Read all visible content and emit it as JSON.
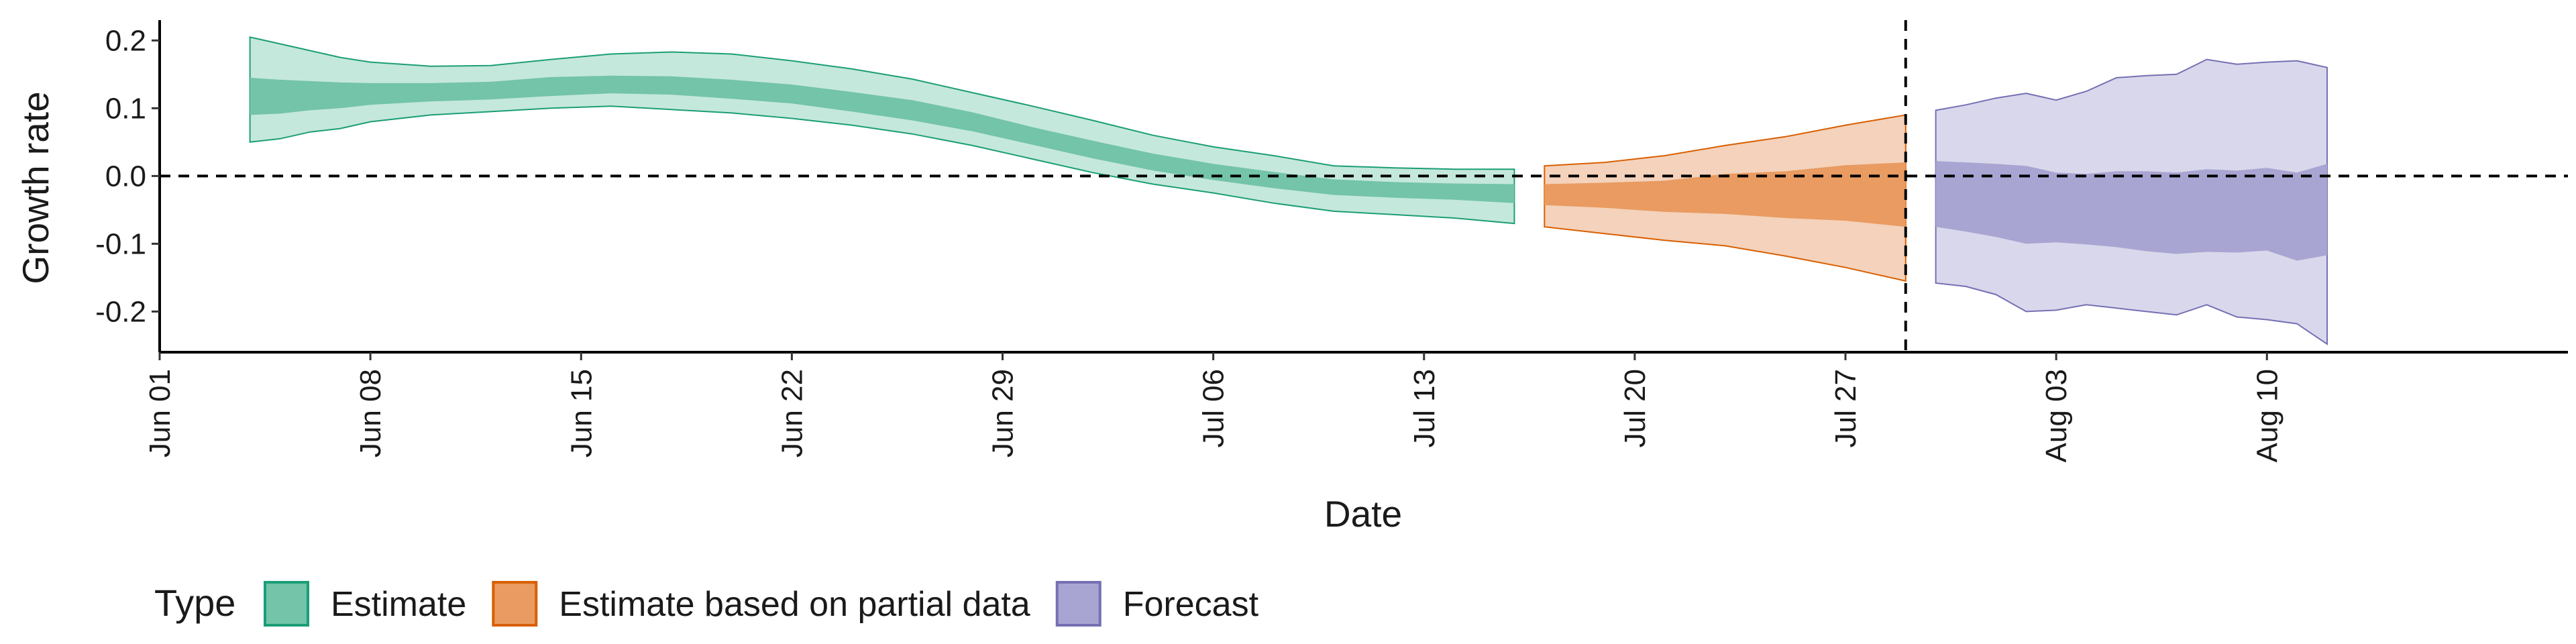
{
  "chart_data": {
    "type": "area",
    "xlabel": "Date",
    "ylabel": "Growth rate",
    "x_start": "2020-06-01",
    "xlim": [
      "2020-06-01",
      "2020-08-20"
    ],
    "ylim": [
      -0.26,
      0.23
    ],
    "x_ticks": [
      {
        "date": "2020-06-01",
        "label": "Jun 01"
      },
      {
        "date": "2020-06-08",
        "label": "Jun 08"
      },
      {
        "date": "2020-06-15",
        "label": "Jun 15"
      },
      {
        "date": "2020-06-22",
        "label": "Jun 22"
      },
      {
        "date": "2020-06-29",
        "label": "Jun 29"
      },
      {
        "date": "2020-07-06",
        "label": "Jul 06"
      },
      {
        "date": "2020-07-13",
        "label": "Jul 13"
      },
      {
        "date": "2020-07-20",
        "label": "Jul 20"
      },
      {
        "date": "2020-07-27",
        "label": "Jul 27"
      },
      {
        "date": "2020-08-03",
        "label": "Aug 03"
      },
      {
        "date": "2020-08-10",
        "label": "Aug 10"
      }
    ],
    "y_ticks": [
      {
        "value": 0.2,
        "label": "0.2"
      },
      {
        "value": 0.1,
        "label": "0.1"
      },
      {
        "value": 0.0,
        "label": "0.0"
      },
      {
        "value": -0.1,
        "label": "-0.1"
      },
      {
        "value": -0.2,
        "label": "-0.2"
      }
    ],
    "reference_lines": {
      "horizontal_y": 0.0,
      "vertical_date": "2020-07-29"
    },
    "legend": {
      "title": "Type",
      "placement": "bottom-left",
      "items": [
        "Estimate",
        "Estimate based on partial data",
        "Forecast"
      ]
    },
    "series": [
      {
        "name": "Estimate",
        "fill_outer": "#c5e8dc",
        "fill_inner": "#73c4a9",
        "stroke": "#1b9e77",
        "points": [
          {
            "date": "2020-06-04",
            "lo90": 0.05,
            "hi90": 0.205,
            "lo50": 0.09,
            "hi50": 0.145
          },
          {
            "date": "2020-06-05",
            "lo90": 0.055,
            "hi90": 0.195,
            "lo50": 0.092,
            "hi50": 0.142
          },
          {
            "date": "2020-06-06",
            "lo90": 0.065,
            "hi90": 0.185,
            "lo50": 0.097,
            "hi50": 0.14
          },
          {
            "date": "2020-06-07",
            "lo90": 0.07,
            "hi90": 0.175,
            "lo50": 0.1,
            "hi50": 0.138
          },
          {
            "date": "2020-06-08",
            "lo90": 0.08,
            "hi90": 0.168,
            "lo50": 0.105,
            "hi50": 0.137
          },
          {
            "date": "2020-06-10",
            "lo90": 0.09,
            "hi90": 0.162,
            "lo50": 0.11,
            "hi50": 0.137
          },
          {
            "date": "2020-06-12",
            "lo90": 0.095,
            "hi90": 0.163,
            "lo50": 0.113,
            "hi50": 0.139
          },
          {
            "date": "2020-06-14",
            "lo90": 0.1,
            "hi90": 0.172,
            "lo50": 0.118,
            "hi50": 0.146
          },
          {
            "date": "2020-06-16",
            "lo90": 0.103,
            "hi90": 0.18,
            "lo50": 0.122,
            "hi50": 0.148
          },
          {
            "date": "2020-06-18",
            "lo90": 0.098,
            "hi90": 0.183,
            "lo50": 0.12,
            "hi50": 0.147
          },
          {
            "date": "2020-06-20",
            "lo90": 0.093,
            "hi90": 0.18,
            "lo50": 0.114,
            "hi50": 0.142
          },
          {
            "date": "2020-06-22",
            "lo90": 0.085,
            "hi90": 0.17,
            "lo50": 0.107,
            "hi50": 0.135
          },
          {
            "date": "2020-06-24",
            "lo90": 0.075,
            "hi90": 0.158,
            "lo50": 0.095,
            "hi50": 0.124
          },
          {
            "date": "2020-06-26",
            "lo90": 0.062,
            "hi90": 0.143,
            "lo50": 0.082,
            "hi50": 0.112
          },
          {
            "date": "2020-06-28",
            "lo90": 0.045,
            "hi90": 0.123,
            "lo50": 0.066,
            "hi50": 0.094
          },
          {
            "date": "2020-06-30",
            "lo90": 0.025,
            "hi90": 0.103,
            "lo50": 0.046,
            "hi50": 0.072
          },
          {
            "date": "2020-07-02",
            "lo90": 0.005,
            "hi90": 0.082,
            "lo50": 0.026,
            "hi50": 0.052
          },
          {
            "date": "2020-07-04",
            "lo90": -0.012,
            "hi90": 0.06,
            "lo50": 0.008,
            "hi50": 0.033
          },
          {
            "date": "2020-07-06",
            "lo90": -0.025,
            "hi90": 0.043,
            "lo50": -0.006,
            "hi50": 0.018
          },
          {
            "date": "2020-07-08",
            "lo90": -0.04,
            "hi90": 0.03,
            "lo50": -0.018,
            "hi50": 0.006
          },
          {
            "date": "2020-07-10",
            "lo90": -0.052,
            "hi90": 0.015,
            "lo50": -0.028,
            "hi50": -0.005
          },
          {
            "date": "2020-07-12",
            "lo90": -0.057,
            "hi90": 0.012,
            "lo50": -0.032,
            "hi50": -0.009
          },
          {
            "date": "2020-07-14",
            "lo90": -0.062,
            "hi90": 0.01,
            "lo50": -0.035,
            "hi50": -0.011
          },
          {
            "date": "2020-07-16",
            "lo90": -0.07,
            "hi90": 0.01,
            "lo50": -0.04,
            "hi50": -0.012
          }
        ]
      },
      {
        "name": "Estimate based on partial data",
        "fill_outer": "#f4d2bb",
        "fill_inner": "#e99b61",
        "stroke": "#d95f02",
        "points": [
          {
            "date": "2020-07-17",
            "lo90": -0.075,
            "hi90": 0.015,
            "lo50": -0.043,
            "hi50": -0.012
          },
          {
            "date": "2020-07-19",
            "lo90": -0.085,
            "hi90": 0.02,
            "lo50": -0.047,
            "hi50": -0.01
          },
          {
            "date": "2020-07-21",
            "lo90": -0.095,
            "hi90": 0.03,
            "lo50": -0.053,
            "hi50": -0.007
          },
          {
            "date": "2020-07-23",
            "lo90": -0.103,
            "hi90": 0.045,
            "lo50": -0.056,
            "hi50": 0.003
          },
          {
            "date": "2020-07-25",
            "lo90": -0.118,
            "hi90": 0.058,
            "lo50": -0.062,
            "hi50": 0.007
          },
          {
            "date": "2020-07-27",
            "lo90": -0.135,
            "hi90": 0.075,
            "lo50": -0.066,
            "hi50": 0.016
          },
          {
            "date": "2020-07-29",
            "lo90": -0.155,
            "hi90": 0.09,
            "lo50": -0.075,
            "hi50": 0.02
          }
        ]
      },
      {
        "name": "Forecast",
        "fill_outer": "#d9d7eb",
        "fill_inner": "#a9a5d2",
        "stroke": "#7570b3",
        "points": [
          {
            "date": "2020-07-30",
            "lo90": -0.158,
            "hi90": 0.097,
            "lo50": -0.075,
            "hi50": 0.022
          },
          {
            "date": "2020-07-31",
            "lo90": -0.163,
            "hi90": 0.105,
            "lo50": -0.082,
            "hi50": 0.02
          },
          {
            "date": "2020-08-01",
            "lo90": -0.175,
            "hi90": 0.115,
            "lo50": -0.09,
            "hi50": 0.018
          },
          {
            "date": "2020-08-02",
            "lo90": -0.2,
            "hi90": 0.122,
            "lo50": -0.1,
            "hi50": 0.015
          },
          {
            "date": "2020-08-03",
            "lo90": -0.198,
            "hi90": 0.112,
            "lo50": -0.098,
            "hi50": 0.005
          },
          {
            "date": "2020-08-04",
            "lo90": -0.19,
            "hi90": 0.125,
            "lo50": -0.101,
            "hi50": 0.003
          },
          {
            "date": "2020-08-05",
            "lo90": -0.195,
            "hi90": 0.145,
            "lo50": -0.105,
            "hi50": 0.007
          },
          {
            "date": "2020-08-06",
            "lo90": -0.2,
            "hi90": 0.148,
            "lo50": -0.111,
            "hi50": 0.007
          },
          {
            "date": "2020-08-07",
            "lo90": -0.205,
            "hi90": 0.15,
            "lo50": -0.115,
            "hi50": 0.005
          },
          {
            "date": "2020-08-08",
            "lo90": -0.19,
            "hi90": 0.172,
            "lo50": -0.112,
            "hi50": 0.01
          },
          {
            "date": "2020-08-09",
            "lo90": -0.208,
            "hi90": 0.165,
            "lo50": -0.113,
            "hi50": 0.008
          },
          {
            "date": "2020-08-10",
            "lo90": -0.212,
            "hi90": 0.168,
            "lo50": -0.11,
            "hi50": 0.012
          },
          {
            "date": "2020-08-11",
            "lo90": -0.218,
            "hi90": 0.17,
            "lo50": -0.125,
            "hi50": 0.005
          },
          {
            "date": "2020-08-12",
            "lo90": -0.248,
            "hi90": 0.16,
            "lo50": -0.117,
            "hi50": 0.018
          }
        ]
      }
    ]
  }
}
